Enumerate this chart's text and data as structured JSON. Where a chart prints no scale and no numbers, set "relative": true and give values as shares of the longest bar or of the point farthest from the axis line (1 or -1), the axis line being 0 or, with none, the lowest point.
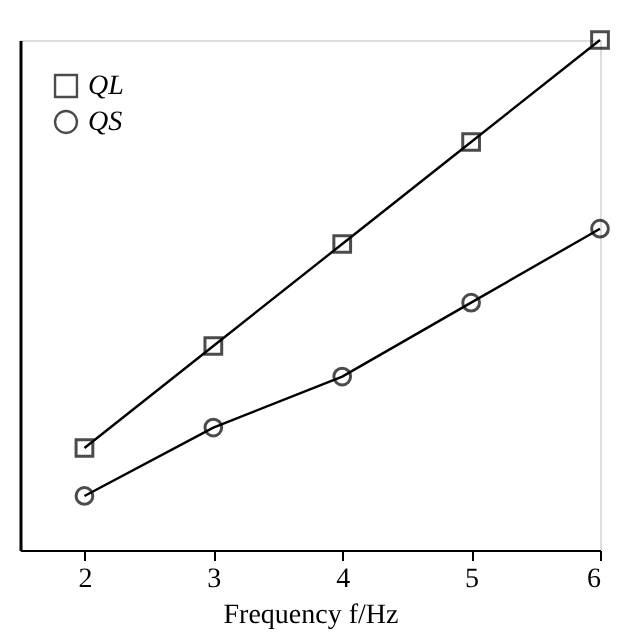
{
  "chart_data": {
    "type": "line",
    "xlabel": "Frequency f/Hz",
    "relative": true,
    "x": [
      2,
      3,
      4,
      5,
      6
    ],
    "series": [
      {
        "name": "QL",
        "color": "#000000",
        "marker": "square",
        "values": [
          0.2,
          0.4,
          0.6,
          0.8,
          1.0
        ]
      },
      {
        "name": "QS",
        "color": "#000000",
        "marker": "circle",
        "values": [
          0.106,
          0.24,
          0.34,
          0.485,
          0.63
        ]
      }
    ],
    "xlim": [
      1.5,
      6
    ],
    "xticks": [
      2,
      3,
      4,
      5,
      6
    ],
    "grid": false,
    "legend": "top left",
    "line_style": "solid"
  }
}
